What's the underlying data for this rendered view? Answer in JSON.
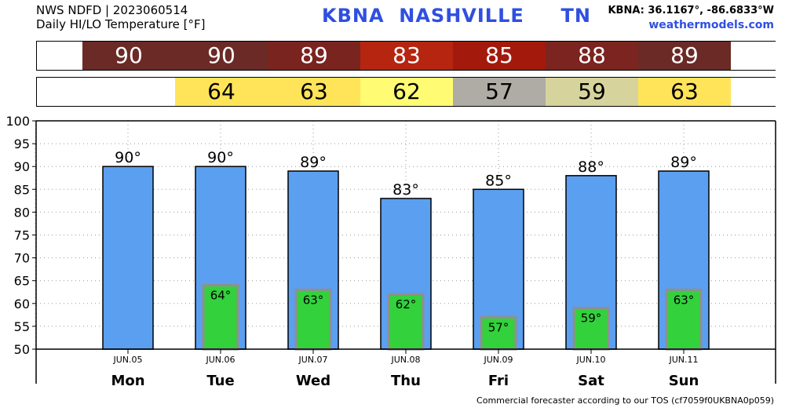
{
  "header": {
    "source": "NWS NDFD | 2023060514",
    "product": "Daily HI/LO Temperature [°F]",
    "station_title": "KBNA  NASHVILLE     TN",
    "coords": "KBNA: 36.1167°, -86.6833°W",
    "site": "weathermodels.com"
  },
  "hi_strip": [
    {
      "value": "",
      "color": "#ffffff"
    },
    {
      "value": "90",
      "color": "#6b2a26"
    },
    {
      "value": "90",
      "color": "#6b2a26"
    },
    {
      "value": "89",
      "color": "#7a2420"
    },
    {
      "value": "83",
      "color": "#b52510"
    },
    {
      "value": "85",
      "color": "#a31a0c"
    },
    {
      "value": "88",
      "color": "#7c2420"
    },
    {
      "value": "89",
      "color": "#6b2a26"
    },
    {
      "value": "",
      "color": "#ffffff"
    }
  ],
  "lo_strip": [
    {
      "value": "",
      "color": "#ffffff"
    },
    {
      "value": "",
      "color": "#ffffff"
    },
    {
      "value": "64",
      "color": "#ffe45a"
    },
    {
      "value": "63",
      "color": "#ffe45a"
    },
    {
      "value": "62",
      "color": "#fffb72"
    },
    {
      "value": "57",
      "color": "#aeaca4"
    },
    {
      "value": "59",
      "color": "#d6d49c"
    },
    {
      "value": "63",
      "color": "#ffe45a"
    },
    {
      "value": "",
      "color": "#ffffff"
    }
  ],
  "chart_data": {
    "type": "bar",
    "categories": [
      "JUN.05",
      "JUN.06",
      "JUN.07",
      "JUN.08",
      "JUN.09",
      "JUN.10",
      "JUN.11"
    ],
    "days": [
      "Mon",
      "Tue",
      "Wed",
      "Thu",
      "Fri",
      "Sat",
      "Sun"
    ],
    "series": [
      {
        "values": [
          90,
          90,
          89,
          83,
          85,
          88,
          89
        ],
        "color": "#5b9ff0"
      },
      {
        "values": [
          null,
          64,
          63,
          62,
          57,
          59,
          63
        ],
        "color": "#33d13c"
      }
    ],
    "hi_labels": [
      "90°",
      "90°",
      "89°",
      "83°",
      "85°",
      "88°",
      "89°"
    ],
    "lo_labels": [
      "",
      "64°",
      "63°",
      "62°",
      "57°",
      "59°",
      "63°"
    ],
    "ylim": [
      50,
      100
    ],
    "yticks": [
      50,
      55,
      60,
      65,
      70,
      75,
      80,
      85,
      90,
      95,
      100
    ],
    "grid": true
  },
  "footer": "Commercial forecaster according to our TOS (cf7059f0UKBNA0p059)"
}
